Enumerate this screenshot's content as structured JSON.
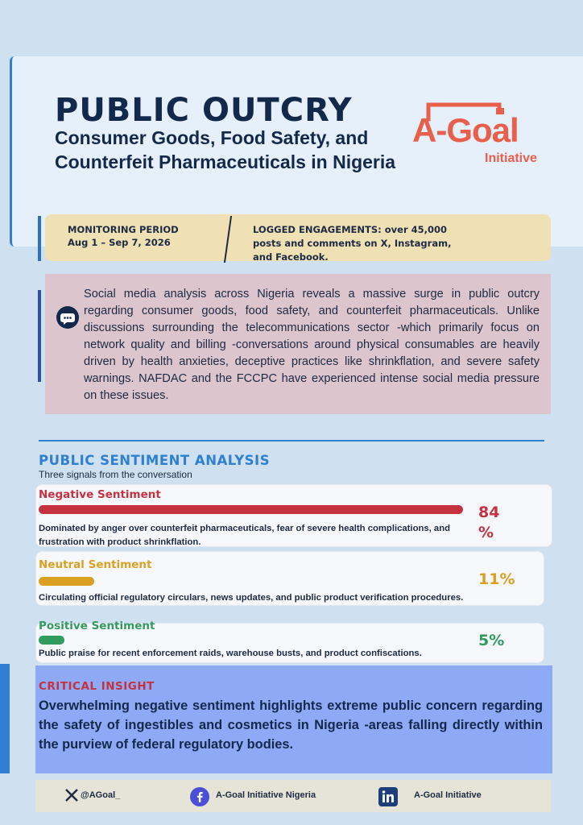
{
  "header": {
    "title": "PUBLIC OUTCRY",
    "subtitle": "Consumer Goods, Food Safety, and Counterfeit Pharmaceuticals in Nigeria"
  },
  "logo": {
    "name": "A-Goal",
    "tagline": "Initiative",
    "color": "#e8604c"
  },
  "monitoring": {
    "label": "MONITORING PERIOD",
    "period": "Aug 1 – Sep 7, 2026",
    "engagements": "LOGGED ENGAGEMENTS: over 45,000 posts and comments on X, Instagram, and Facebook."
  },
  "intro": {
    "icon": "chat-bubble-icon",
    "text": "Social media analysis across Nigeria reveals a massive surge in public outcry regarding consumer goods, food safety, and counterfeit pharmaceuticals. Unlike discussions surrounding the telecommunications sector -which primarily focus on network quality and billing -conversations around physical consumables are heavily driven by health anxieties, deceptive practices like shrinkflation, and severe safety warnings. NAFDAC and the FCCPC have experienced intense social media pressure on these issues."
  },
  "sentiment": {
    "title": "PUBLIC SENTIMENT ANALYSIS",
    "subtitle": "Three signals from the conversation",
    "items": [
      {
        "name": "Negative Sentiment",
        "percent_label": "84\n%",
        "value": 84,
        "color": "#c5323f",
        "description": "Dominated by anger over counterfeit pharmaceuticals, fear of severe health complications, and frustration with product shrinkflation."
      },
      {
        "name": "Neutral Sentiment",
        "percent_label": "11%",
        "value": 11,
        "color": "#d9a021",
        "description": "Circulating official regulatory circulars, news updates, and public product verification procedures."
      },
      {
        "name": "Positive Sentiment",
        "percent_label": "5%",
        "value": 5,
        "color": "#2f9b5f",
        "description": "Public praise for recent enforcement raids, warehouse busts, and product confiscations."
      }
    ]
  },
  "insight": {
    "label": "CRITICAL INSIGHT",
    "text": "Overwhelming negative sentiment highlights extreme public concern regarding the safety of ingestibles and cosmetics in Nigeria -areas falling directly within the purview of federal regulatory bodies."
  },
  "footer": {
    "x_handle": "@AGoal_",
    "facebook": "A-Goal Initiative Nigeria",
    "linkedin": "A-Goal Initiative"
  }
}
